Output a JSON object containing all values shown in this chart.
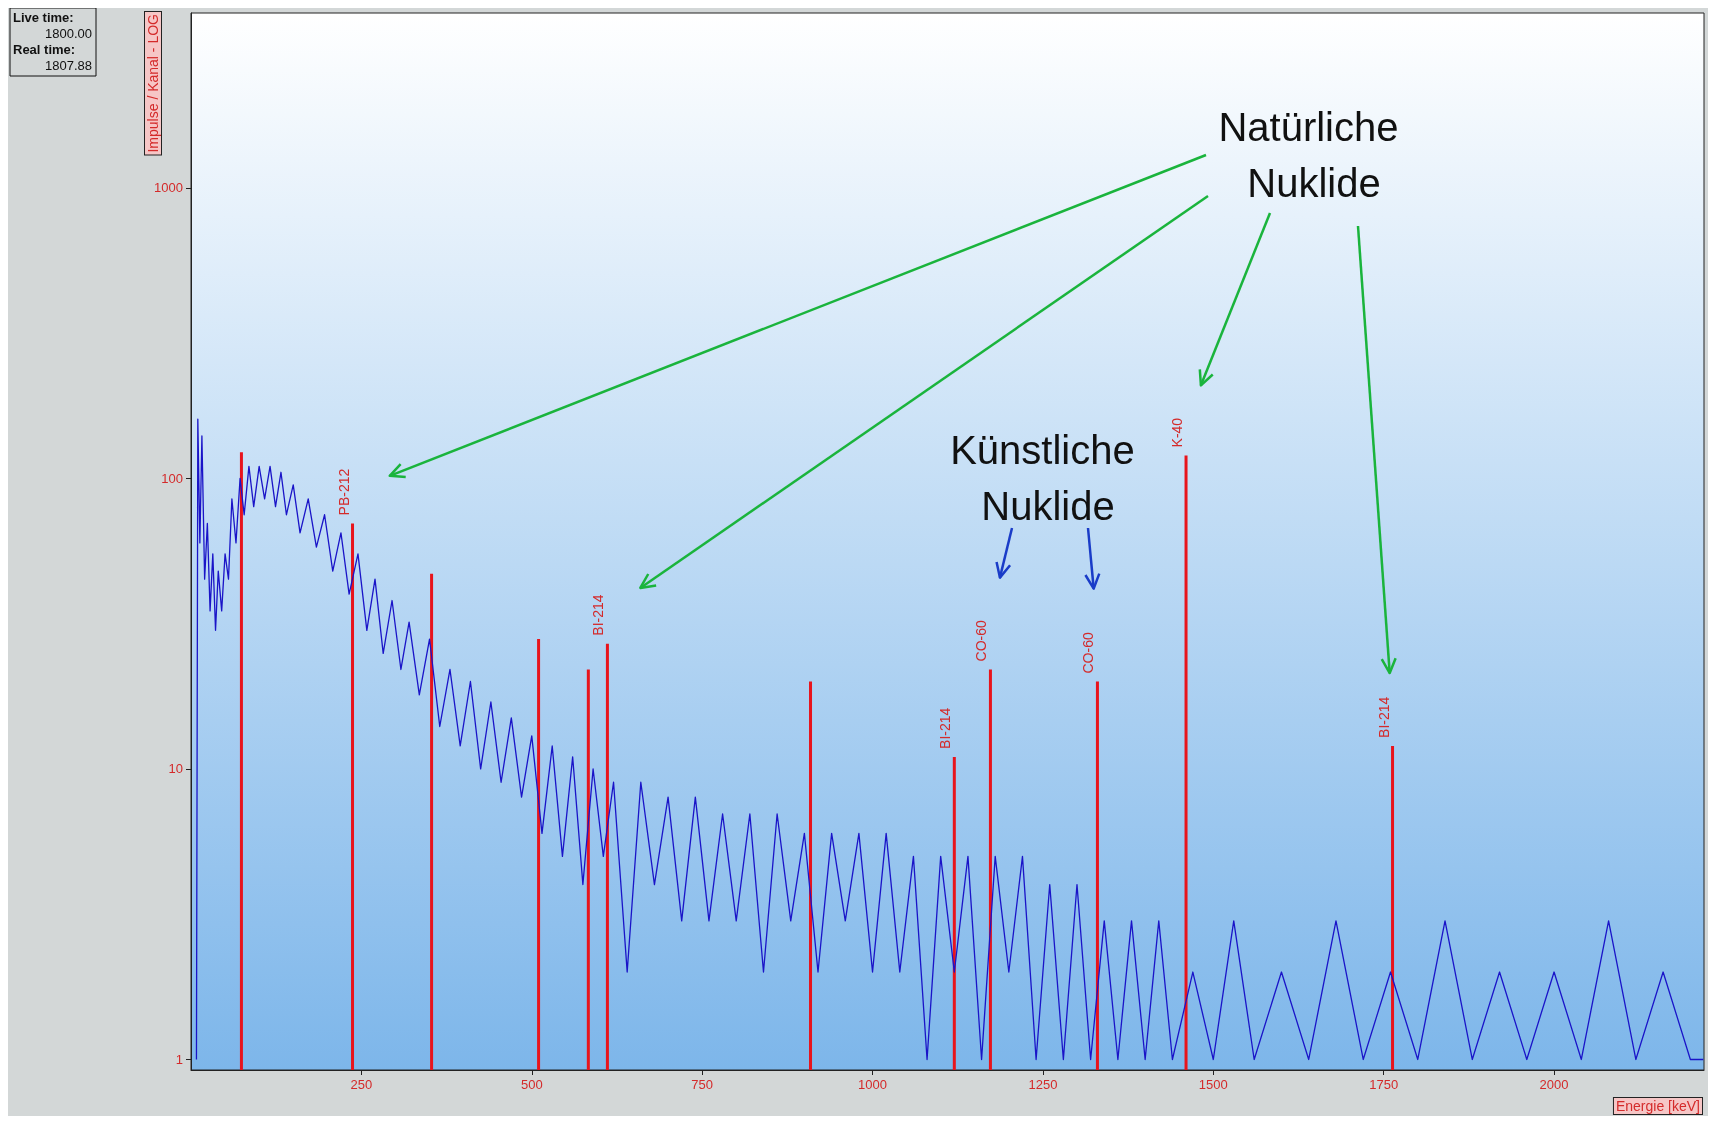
{
  "chart_data": {
    "type": "line",
    "xlabel": "Energie [keV]",
    "ylabel": "Impulse / Kanal - LOG",
    "xlim": [
      0,
      2220
    ],
    "xticks": [
      250,
      500,
      750,
      1000,
      1250,
      1500,
      1750,
      2000
    ],
    "ylim": [
      0.92,
      4000
    ],
    "yticks": [
      1,
      10,
      100,
      1000
    ],
    "log": "y",
    "series": [
      {
        "color": "#1a14c8",
        "x": [
          8,
          10,
          13,
          16,
          20,
          24,
          28,
          32,
          36,
          40,
          45,
          50,
          55,
          60,
          66,
          72,
          78,
          85,
          92,
          100,
          108,
          116,
          124,
          132,
          140,
          150,
          160,
          172,
          184,
          196,
          208,
          220,
          232,
          245,
          258,
          270,
          282,
          295,
          308,
          320,
          335,
          350,
          365,
          380,
          395,
          410,
          425,
          440,
          455,
          470,
          485,
          500,
          515,
          530,
          545,
          560,
          575,
          590,
          605,
          620,
          640,
          660,
          680,
          700,
          720,
          740,
          760,
          780,
          800,
          820,
          840,
          860,
          880,
          900,
          920,
          940,
          960,
          980,
          1000,
          1020,
          1040,
          1060,
          1080,
          1100,
          1120,
          1140,
          1160,
          1180,
          1200,
          1220,
          1240,
          1260,
          1280,
          1300,
          1320,
          1340,
          1360,
          1380,
          1400,
          1420,
          1440,
          1470,
          1500,
          1530,
          1560,
          1600,
          1640,
          1680,
          1720,
          1760,
          1800,
          1840,
          1880,
          1920,
          1960,
          2000,
          2040,
          2080,
          2120,
          2160,
          2200,
          2219
        ],
        "values": [
          1,
          160,
          60,
          140,
          45,
          70,
          35,
          55,
          30,
          48,
          35,
          55,
          45,
          85,
          60,
          100,
          75,
          110,
          80,
          110,
          85,
          110,
          80,
          105,
          75,
          95,
          65,
          85,
          58,
          75,
          48,
          65,
          40,
          55,
          30,
          45,
          25,
          38,
          22,
          32,
          18,
          28,
          14,
          22,
          12,
          20,
          10,
          17,
          9,
          15,
          8,
          13,
          6,
          12,
          5,
          11,
          4,
          10,
          5,
          9,
          2,
          9,
          4,
          8,
          3,
          8,
          3,
          7,
          3,
          7,
          2,
          7,
          3,
          6,
          2,
          6,
          3,
          6,
          2,
          6,
          2,
          5,
          1,
          5,
          2,
          5,
          1,
          5,
          2,
          5,
          1,
          4,
          1,
          4,
          1,
          3,
          1,
          3,
          1,
          3,
          1,
          2,
          1,
          3,
          1,
          2,
          1,
          3,
          1,
          2,
          1,
          3,
          1,
          2,
          1,
          2,
          1,
          3,
          1,
          2,
          1,
          1
        ]
      },
      {
        "type": "bar",
        "color": "#e8141c",
        "x": [
          74,
          237,
          353,
          510,
          583,
          611,
          909,
          1120,
          1173,
          1330,
          1460,
          1763
        ],
        "values": [
          123,
          70,
          47,
          28,
          22,
          27,
          20,
          11,
          22,
          20,
          120,
          12
        ]
      }
    ],
    "annotations": [
      "Natürliche Nuklide",
      "Künstliche Nuklide",
      "Live time:",
      "1800.00",
      "Real time:",
      "1807.88",
      {
        "text": "PB-212",
        "x": 237,
        "y": 70
      },
      {
        "text": "BI-214",
        "x": 611,
        "y": 27
      },
      {
        "text": "BI-214",
        "x": 1120,
        "y": 11
      },
      {
        "text": "CO-60",
        "x": 1173,
        "y": 22
      },
      {
        "text": "CO-60",
        "x": 1330,
        "y": 20
      },
      {
        "text": "K-40",
        "x": 1460,
        "y": 120
      },
      {
        "text": "BI-214",
        "x": 1763,
        "y": 12
      }
    ]
  }
}
